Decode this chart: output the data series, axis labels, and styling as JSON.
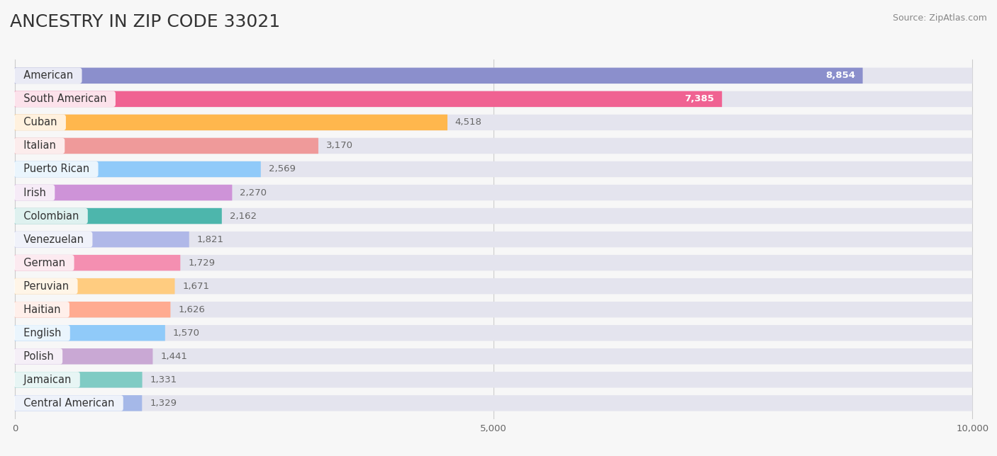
{
  "title": "ANCESTRY IN ZIP CODE 33021",
  "source_text": "Source: ZipAtlas.com",
  "categories": [
    "American",
    "South American",
    "Cuban",
    "Italian",
    "Puerto Rican",
    "Irish",
    "Colombian",
    "Venezuelan",
    "German",
    "Peruvian",
    "Haitian",
    "English",
    "Polish",
    "Jamaican",
    "Central American"
  ],
  "values": [
    8854,
    7385,
    4518,
    3170,
    2569,
    2270,
    2162,
    1821,
    1729,
    1671,
    1626,
    1570,
    1441,
    1331,
    1329
  ],
  "bar_colors": [
    "#8b8fcc",
    "#f06292",
    "#ffb74d",
    "#ef9a9a",
    "#90caf9",
    "#ce93d8",
    "#4db6ac",
    "#b0b8e8",
    "#f48fb1",
    "#ffcc80",
    "#ffab91",
    "#90caf9",
    "#c9a8d4",
    "#80cbc4",
    "#a5b8e8"
  ],
  "value_colors": [
    "white",
    "white",
    "#666666",
    "#666666",
    "#666666",
    "#666666",
    "#666666",
    "#666666",
    "#666666",
    "#666666",
    "#666666",
    "#666666",
    "#666666",
    "#666666",
    "#666666"
  ],
  "xlim": [
    0,
    10000
  ],
  "background_color": "#f7f7f7",
  "bar_bg_color": "#e4e4ee",
  "title_fontsize": 18,
  "label_fontsize": 10.5,
  "value_fontsize": 9.5
}
